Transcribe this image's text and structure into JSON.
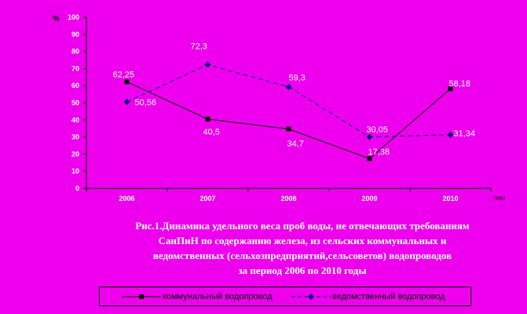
{
  "chart_data": {
    "type": "line",
    "y_unit": "%",
    "x_unit": "годы",
    "categories": [
      "2006",
      "2007",
      "2008",
      "2009",
      "2010"
    ],
    "ylim": [
      0,
      100
    ],
    "yticks": [
      "0",
      "10",
      "20",
      "30",
      "40",
      "50",
      "60",
      "70",
      "80",
      "90",
      "100"
    ],
    "grid": false,
    "legend_position": "bottom",
    "series": [
      {
        "name": "коммунальный водопровод",
        "values": [
          62.25,
          40.5,
          34.7,
          17.38,
          58.18
        ],
        "labels": [
          "62,25",
          "40,5",
          "34,7",
          "17,38",
          "58,18"
        ],
        "color": "#000000",
        "line_style": "solid",
        "marker": "square"
      },
      {
        "name": "ведомственный водопровод",
        "values": [
          50.56,
          72.3,
          59.3,
          30.05,
          31.34
        ],
        "labels": [
          "50,56",
          "72,3",
          "59,3",
          "30,05",
          "31,34"
        ],
        "color": "#000080",
        "line_style": "dashed",
        "marker": "diamond"
      }
    ],
    "caption_lines": [
      "Рис.1.Динамика удельного веса проб воды, не отвечающих требованиям",
      "СанПиН по содержанию железа, из сельских коммунальных и",
      "ведомственных (сельхозпредприятий,сельсоветов) водопроводов",
      "за период 2006 по 2010 годы"
    ]
  }
}
